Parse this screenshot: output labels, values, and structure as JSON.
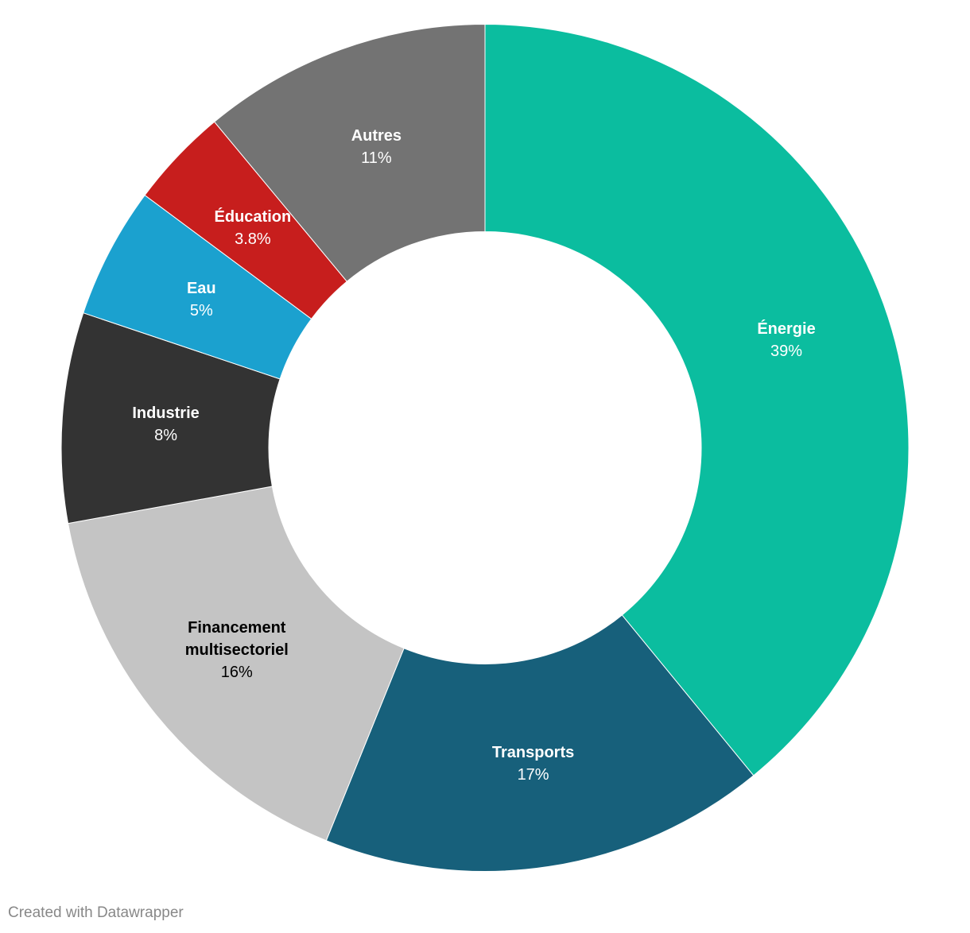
{
  "chart_data": {
    "type": "donut",
    "categories": [
      "Énergie",
      "Transports",
      "Financement multisectoriel",
      "Industrie",
      "Eau",
      "Éducation",
      "Autres"
    ],
    "values": [
      39,
      17,
      16,
      8,
      5,
      3.8,
      11
    ],
    "value_labels": [
      "39%",
      "17%",
      "16%",
      "8%",
      "5%",
      "3.8%",
      "11%"
    ],
    "colors": [
      "#0bbd9f",
      "#17607b",
      "#c4c4c4",
      "#333333",
      "#1ba1cf",
      "#c71e1d",
      "#737373"
    ],
    "label_colors": [
      "#ffffff",
      "#ffffff",
      "#000000",
      "#ffffff",
      "#ffffff",
      "#ffffff",
      "#ffffff"
    ],
    "credit": "Created with Datawrapper"
  }
}
